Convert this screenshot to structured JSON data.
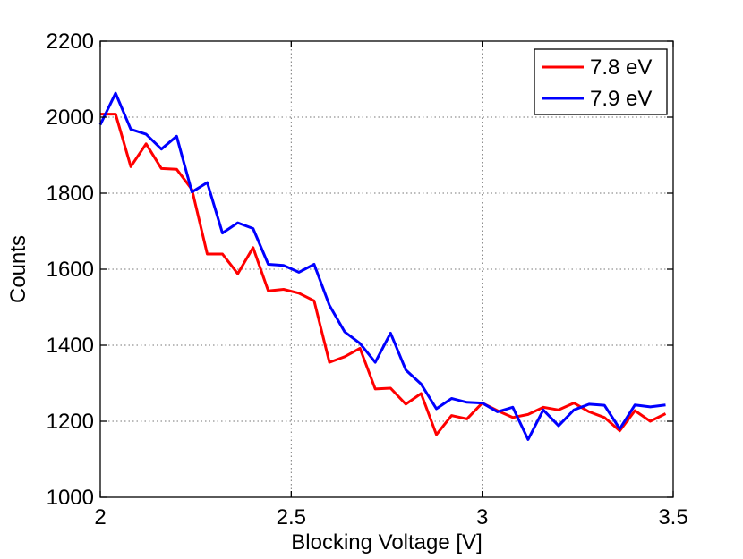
{
  "chart_data": {
    "type": "line",
    "title": "",
    "xlabel": "Blocking Voltage [V]",
    "ylabel": "Counts",
    "xlim": [
      2,
      3.5
    ],
    "ylim": [
      1000,
      2200
    ],
    "xticks": [
      2,
      2.5,
      3,
      3.5
    ],
    "xtick_labels": [
      "2",
      "2.5",
      "3",
      "3.5"
    ],
    "yticks": [
      1000,
      1200,
      1400,
      1600,
      1800,
      2000,
      2200
    ],
    "ytick_labels": [
      "1000",
      "1200",
      "1400",
      "1600",
      "1800",
      "2000",
      "2200"
    ],
    "grid": true,
    "legend_position": "top-right",
    "x": [
      2.0,
      2.04,
      2.08,
      2.12,
      2.16,
      2.2,
      2.24,
      2.28,
      2.32,
      2.36,
      2.4,
      2.44,
      2.48,
      2.52,
      2.56,
      2.6,
      2.64,
      2.68,
      2.72,
      2.76,
      2.8,
      2.84,
      2.88,
      2.92,
      2.96,
      3.0,
      3.04,
      3.08,
      3.12,
      3.16,
      3.2,
      3.24,
      3.28,
      3.32,
      3.36,
      3.4,
      3.44,
      3.48
    ],
    "series": [
      {
        "name": "7.8 eV",
        "color": "#ff0000",
        "values": [
          2008,
          2008,
          1870,
          1930,
          1865,
          1863,
          1810,
          1640,
          1640,
          1588,
          1657,
          1543,
          1547,
          1537,
          1517,
          1355,
          1370,
          1392,
          1285,
          1287,
          1245,
          1273,
          1165,
          1215,
          1206,
          1248,
          1228,
          1210,
          1218,
          1237,
          1230,
          1248,
          1225,
          1210,
          1175,
          1228,
          1200,
          1220
        ]
      },
      {
        "name": "7.9 eV",
        "color": "#0000ff",
        "values": [
          1980,
          2063,
          1968,
          1955,
          1916,
          1950,
          1803,
          1828,
          1695,
          1722,
          1707,
          1613,
          1610,
          1592,
          1613,
          1505,
          1435,
          1405,
          1355,
          1432,
          1335,
          1298,
          1233,
          1260,
          1250,
          1248,
          1225,
          1237,
          1152,
          1230,
          1188,
          1230,
          1245,
          1242,
          1180,
          1243,
          1238,
          1243
        ]
      }
    ]
  }
}
